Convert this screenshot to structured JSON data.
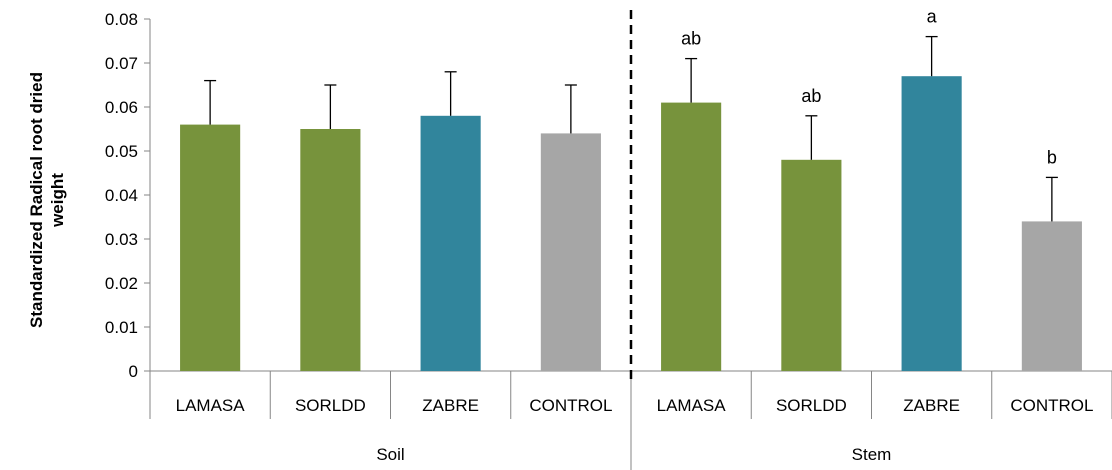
{
  "chart_data": {
    "type": "bar",
    "ylabel_lines": [
      "Standardized Radical root dried",
      "weight"
    ],
    "xlabel": "",
    "ylim": [
      0,
      0.08
    ],
    "yticks": [
      "0",
      "0.01",
      "0.02",
      "0.03",
      "0.04",
      "0.05",
      "0.06",
      "0.07",
      "0.08"
    ],
    "grid": false,
    "groups": [
      {
        "name": "Soil",
        "bars": [
          {
            "category": "LAMASA",
            "value": 0.056,
            "error": 0.01,
            "color": "#77933c",
            "sig": ""
          },
          {
            "category": "SORLDD",
            "value": 0.055,
            "error": 0.01,
            "color": "#77933c",
            "sig": ""
          },
          {
            "category": "ZABRE",
            "value": 0.058,
            "error": 0.01,
            "color": "#31859c",
            "sig": ""
          },
          {
            "category": "CONTROL",
            "value": 0.054,
            "error": 0.011,
            "color": "#a6a6a6",
            "sig": ""
          }
        ]
      },
      {
        "name": "Stem",
        "bars": [
          {
            "category": "LAMASA",
            "value": 0.061,
            "error": 0.01,
            "color": "#77933c",
            "sig": "ab"
          },
          {
            "category": "SORLDD",
            "value": 0.048,
            "error": 0.01,
            "color": "#77933c",
            "sig": "ab"
          },
          {
            "category": "ZABRE",
            "value": 0.067,
            "error": 0.009,
            "color": "#31859c",
            "sig": "a"
          },
          {
            "category": "CONTROL",
            "value": 0.034,
            "error": 0.01,
            "color": "#a6a6a6",
            "sig": "b"
          }
        ]
      }
    ]
  }
}
